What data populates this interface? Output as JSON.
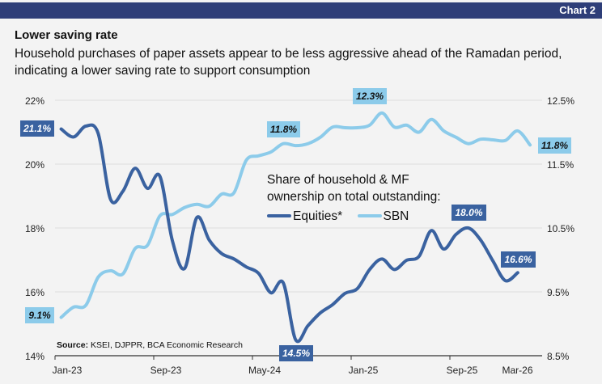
{
  "header": {
    "chart_number": "Chart 2"
  },
  "title": "Lower saving rate",
  "subtitle": "Household purchases of paper assets appear to be less aggressive ahead of the Ramadan period, indicating a lower saving rate to support consumption",
  "source": {
    "label": "Source:",
    "text": " KSEI, DJPPR, BCA Economic Research"
  },
  "legend": {
    "title_line1": "Share of household & MF",
    "title_line2": "ownership on total outstanding:"
  },
  "colors": {
    "equities": "#3a62a0",
    "sbn": "#8ccbea",
    "header": "#2e3e78",
    "grid": "#dcdcdc"
  },
  "chart_data": {
    "type": "line",
    "x_tick_labels": [
      "Jan-23",
      "Sep-23",
      "May-24",
      "Jan-25",
      "Sep-25",
      "Mar-26"
    ],
    "x_start": "Jan-23",
    "x_end": "Mar-26",
    "x_frequency": "monthly",
    "left_axis": {
      "ylim": [
        14,
        22
      ],
      "ticks": [
        "14%",
        "16%",
        "18%",
        "20%",
        "22%"
      ]
    },
    "right_axis": {
      "ylim": [
        8.5,
        12.5
      ],
      "ticks": [
        "8.5%",
        "9.5%",
        "10.5%",
        "11.5%",
        "12.5%"
      ]
    },
    "grid": true,
    "series": [
      {
        "name": "Equities*",
        "axis": "left",
        "values": [
          21.1,
          20.85,
          21.19,
          20.96,
          18.9,
          19.15,
          19.87,
          19.24,
          19.62,
          17.62,
          16.73,
          18.33,
          17.62,
          17.2,
          17.03,
          16.78,
          16.58,
          15.97,
          16.28,
          14.5,
          14.94,
          15.34,
          15.6,
          15.95,
          16.1,
          16.7,
          17.03,
          16.7,
          16.99,
          17.11,
          17.92,
          17.34,
          17.8,
          18.0,
          17.62,
          16.96,
          16.35,
          16.6,
          null
        ]
      },
      {
        "name": "SBN",
        "axis": "right",
        "values": [
          9.1,
          9.26,
          9.29,
          9.73,
          9.83,
          9.78,
          10.18,
          10.23,
          10.69,
          10.71,
          10.82,
          10.87,
          10.84,
          11.03,
          11.05,
          11.56,
          11.63,
          11.69,
          11.82,
          11.79,
          11.82,
          11.92,
          12.08,
          12.07,
          12.07,
          12.11,
          12.3,
          12.08,
          12.11,
          12.0,
          12.2,
          12.02,
          11.92,
          11.82,
          11.89,
          11.88,
          11.87,
          12.02,
          11.8
        ]
      }
    ],
    "data_labels": {
      "equities_first": "21.1%",
      "equities_min": "14.5%",
      "equities_peak": "18.0%",
      "equities_last": "16.6%",
      "sbn_first": "9.1%",
      "sbn_mid": "11.8%",
      "sbn_peak": "12.3%",
      "sbn_last": "11.8%"
    }
  }
}
